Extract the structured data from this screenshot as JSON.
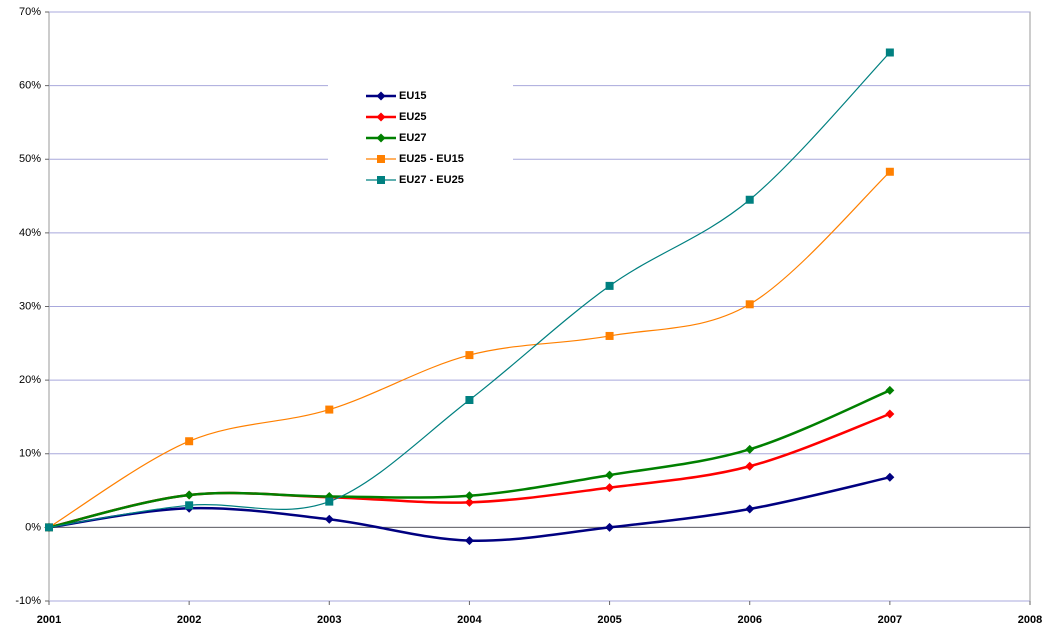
{
  "chart_data": {
    "type": "line",
    "x": [
      2001,
      2002,
      2003,
      2004,
      2005,
      2006,
      2007
    ],
    "xlim": [
      2001,
      2008
    ],
    "xticks": [
      2001,
      2002,
      2003,
      2004,
      2005,
      2006,
      2007,
      2008
    ],
    "ylim": [
      -10,
      70
    ],
    "yticks": [
      {
        "value": -10,
        "label": "-10%"
      },
      {
        "value": 0,
        "label": "0%"
      },
      {
        "value": 10,
        "label": "10%"
      },
      {
        "value": 20,
        "label": "20%"
      },
      {
        "value": 30,
        "label": "30%"
      },
      {
        "value": 40,
        "label": "40%"
      },
      {
        "value": 50,
        "label": "50%"
      },
      {
        "value": 60,
        "label": "60%"
      },
      {
        "value": 70,
        "label": "70%"
      }
    ],
    "grid": true,
    "smooth": true,
    "legend": "upper left",
    "series": [
      {
        "name": "EU15",
        "color": "#000080",
        "marker": "diamond",
        "values": [
          0,
          2.6,
          1.1,
          -1.8,
          0,
          2.5,
          6.8
        ]
      },
      {
        "name": "EU25",
        "color": "#ff0000",
        "marker": "diamond",
        "values": [
          0,
          4.4,
          4.1,
          3.4,
          5.4,
          8.3,
          15.4
        ]
      },
      {
        "name": "EU27",
        "color": "#008000",
        "marker": "diamond",
        "values": [
          0,
          4.4,
          4.2,
          4.3,
          7.1,
          10.6,
          18.6
        ]
      },
      {
        "name": "EU25 - EU15",
        "color": "#ff8000",
        "marker": "square",
        "values": [
          0,
          11.7,
          16.0,
          23.4,
          26.0,
          30.3,
          48.3
        ]
      },
      {
        "name": "EU27 - EU25",
        "color": "#008080",
        "marker": "square",
        "values": [
          0,
          3.0,
          3.5,
          17.3,
          32.8,
          44.5,
          64.5
        ]
      }
    ]
  }
}
